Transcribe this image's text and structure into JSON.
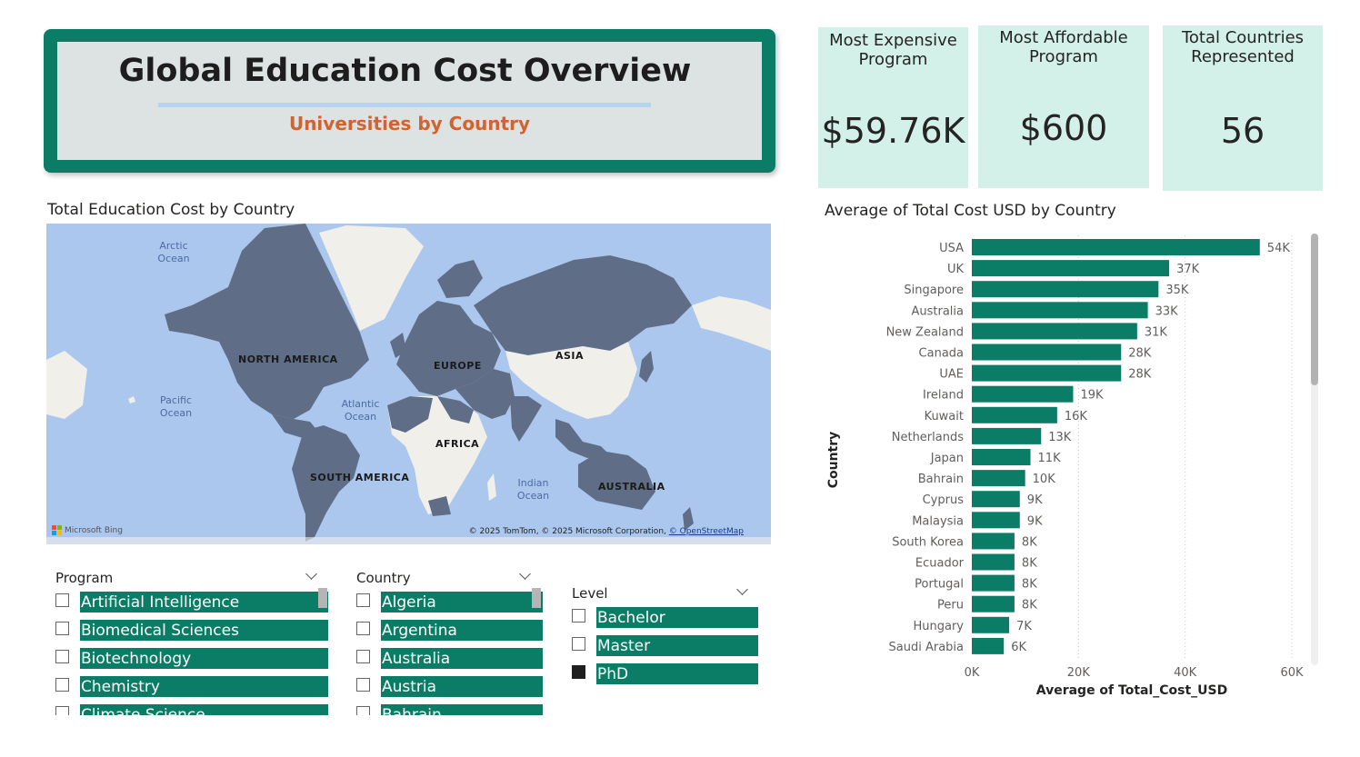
{
  "header": {
    "title": "Global Education Cost Overview",
    "subtitle": "Universities by Country"
  },
  "kpis": [
    {
      "label": "Most Expensive\nProgram",
      "value": "$59.76K"
    },
    {
      "label": "Most Affordable\nProgram",
      "value": "$600"
    },
    {
      "label": "Total Countries\nRepresented",
      "value": "56"
    }
  ],
  "map": {
    "title": "Total Education Cost by Country",
    "oceans": [
      "Arctic\nOcean",
      "Pacific\nOcean",
      "Atlantic\nOcean",
      "Indian\nOcean"
    ],
    "continents": [
      "NORTH AMERICA",
      "EUROPE",
      "ASIA",
      "AFRICA",
      "SOUTH AMERICA",
      "AUSTRALIA"
    ],
    "provider": "Microsoft Bing",
    "copyright": "© 2025 TomTom, © 2025 Microsoft Corporation, ",
    "osm_link": "© OpenStreetMap",
    "colors": {
      "ocean": "#abc7ee",
      "highlighted_land": "#5f6e86",
      "other_land": "#f0efea"
    }
  },
  "slicers": {
    "program": {
      "header": "Program",
      "items": [
        {
          "label": "Artificial Intelligence",
          "checked": false
        },
        {
          "label": "Biomedical Sciences",
          "checked": false
        },
        {
          "label": "Biotechnology",
          "checked": false
        },
        {
          "label": "Chemistry",
          "checked": false
        },
        {
          "label": "Climate Science",
          "checked": false
        }
      ]
    },
    "country": {
      "header": "Country",
      "items": [
        {
          "label": "Algeria",
          "checked": false
        },
        {
          "label": "Argentina",
          "checked": false
        },
        {
          "label": "Australia",
          "checked": false
        },
        {
          "label": "Austria",
          "checked": false
        },
        {
          "label": "Bahrain",
          "checked": false
        }
      ]
    },
    "level": {
      "header": "Level",
      "items": [
        {
          "label": "Bachelor",
          "checked": false
        },
        {
          "label": "Master",
          "checked": false
        },
        {
          "label": "PhD",
          "checked": true
        }
      ]
    }
  },
  "chart_data": {
    "type": "bar",
    "orientation": "horizontal",
    "title": "Average of Total Cost USD by Country",
    "xlabel": "Average of Total_Cost_USD",
    "ylabel": "Country",
    "categories": [
      "USA",
      "UK",
      "Singapore",
      "Australia",
      "New Zealand",
      "Canada",
      "UAE",
      "Ireland",
      "Kuwait",
      "Netherlands",
      "Japan",
      "Bahrain",
      "Cyprus",
      "Malaysia",
      "South Korea",
      "Ecuador",
      "Portugal",
      "Peru",
      "Hungary",
      "Saudi Arabia"
    ],
    "values": [
      54000,
      37000,
      35000,
      33000,
      31000,
      28000,
      28000,
      19000,
      16000,
      13000,
      11000,
      10000,
      9000,
      9000,
      8000,
      8000,
      8000,
      8000,
      7000,
      6000
    ],
    "data_labels": [
      "54K",
      "37K",
      "35K",
      "33K",
      "31K",
      "28K",
      "28K",
      "19K",
      "16K",
      "13K",
      "11K",
      "10K",
      "9K",
      "9K",
      "8K",
      "8K",
      "8K",
      "8K",
      "7K",
      "6K"
    ],
    "xticks": [
      0,
      20000,
      40000,
      60000
    ],
    "xtick_labels": [
      "0K",
      "20K",
      "40K",
      "60K"
    ],
    "xlim": [
      0,
      60000
    ],
    "grid": true,
    "bar_color": "#0b7d66"
  }
}
